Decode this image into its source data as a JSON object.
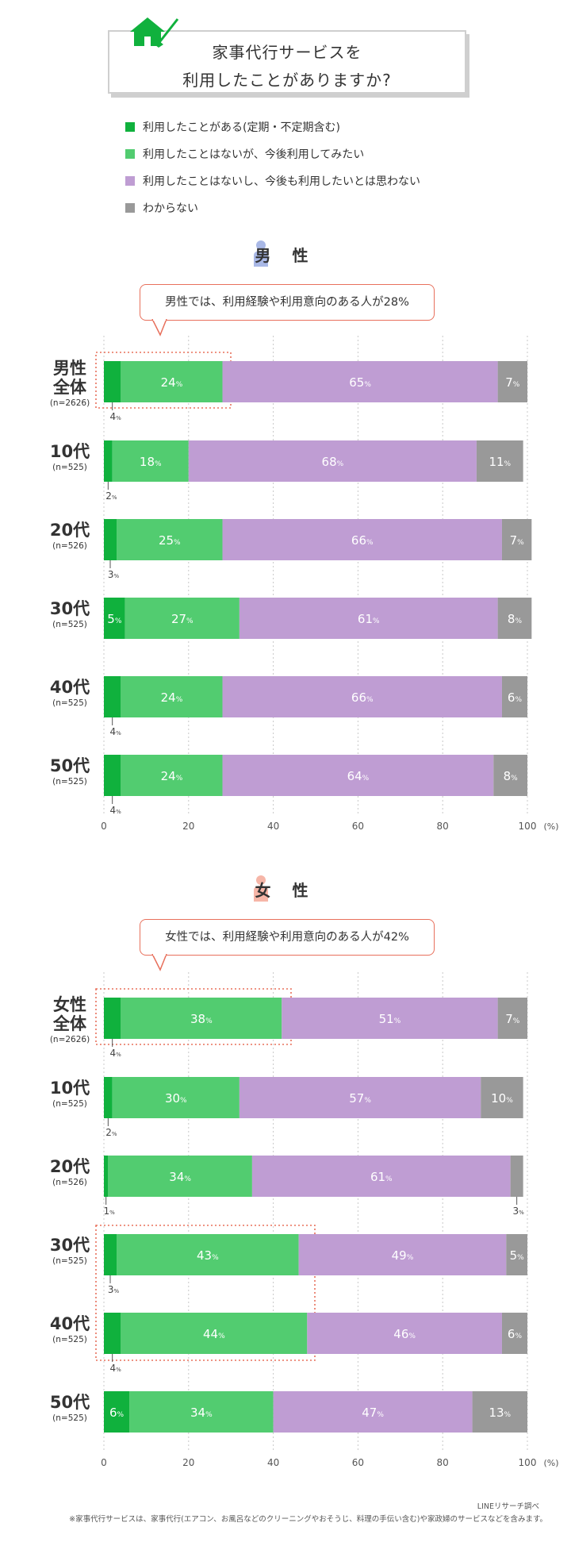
{
  "title": {
    "line1": "家事代行サービスを",
    "line2": "利用したことがありますか?"
  },
  "legend": [
    {
      "label": "利用したことがある(定期・不定期含む)",
      "color": "#10b13d"
    },
    {
      "label": "利用したことはないが、今後利用してみたい",
      "color": "#52cc70"
    },
    {
      "label": "利用したことはないし、今後も利用したいとは思わない",
      "color": "#bf9dd3"
    },
    {
      "label": "わからない",
      "color": "#999999"
    }
  ],
  "unit_suffix": "%",
  "colors": {
    "used": "#10b13d",
    "want": "#52cc70",
    "no": "#bf9dd3",
    "unknown": "#999999",
    "accent": "#e8705c",
    "male_icon": "#a9b8e6",
    "female_icon": "#f6b6a8"
  },
  "male": {
    "heading": "男 性",
    "callout": "男性では、利用経験や利用意向のある人が28%",
    "axis": {
      "ticks": [
        "0",
        "20",
        "40",
        "60",
        "80",
        "100"
      ],
      "unit": "(%)"
    },
    "rows": [
      {
        "label1": "男性",
        "label2": "全体",
        "n": "(n=2626)"
      },
      {
        "label1": "10代",
        "label2": "",
        "n": "(n=525)"
      },
      {
        "label1": "20代",
        "label2": "",
        "n": "(n=526)"
      },
      {
        "label1": "30代",
        "label2": "",
        "n": "(n=525)"
      },
      {
        "label1": "40代",
        "label2": "",
        "n": "(n=525)"
      },
      {
        "label1": "50代",
        "label2": "",
        "n": "(n=525)"
      }
    ]
  },
  "female": {
    "heading": "女 性",
    "callout": "女性では、利用経験や利用意向のある人が42%",
    "axis": {
      "ticks": [
        "0",
        "20",
        "40",
        "60",
        "80",
        "100"
      ],
      "unit": "(%)"
    },
    "rows": [
      {
        "label1": "女性",
        "label2": "全体",
        "n": "(n=2626)"
      },
      {
        "label1": "10代",
        "label2": "",
        "n": "(n=525)"
      },
      {
        "label1": "20代",
        "label2": "",
        "n": "(n=526)"
      },
      {
        "label1": "30代",
        "label2": "",
        "n": "(n=525)"
      },
      {
        "label1": "40代",
        "label2": "",
        "n": "(n=525)"
      },
      {
        "label1": "50代",
        "label2": "",
        "n": "(n=525)"
      }
    ]
  },
  "chart_data": [
    {
      "type": "bar",
      "orientation": "horizontal-stacked",
      "title": "男 性",
      "categories": [
        "男性全体",
        "10代",
        "20代",
        "30代",
        "40代",
        "50代"
      ],
      "series": [
        {
          "name": "利用したことがある(定期・不定期含む)",
          "values": [
            4,
            2,
            3,
            5,
            4,
            4
          ]
        },
        {
          "name": "利用したことはないが、今後利用してみたい",
          "values": [
            24,
            18,
            25,
            27,
            24,
            24
          ]
        },
        {
          "name": "利用したことはないし、今後も利用したいとは思わない",
          "values": [
            65,
            68,
            66,
            61,
            66,
            64
          ]
        },
        {
          "name": "わからない",
          "values": [
            7,
            11,
            7,
            8,
            6,
            8
          ]
        }
      ],
      "xlim": [
        0,
        100
      ],
      "grid": "vertical dotted",
      "highlighted_rows": [
        "男性全体"
      ]
    },
    {
      "type": "bar",
      "orientation": "horizontal-stacked",
      "title": "女 性",
      "categories": [
        "女性全体",
        "10代",
        "20代",
        "30代",
        "40代",
        "50代"
      ],
      "series": [
        {
          "name": "利用したことがある(定期・不定期含む)",
          "values": [
            4,
            2,
            1,
            3,
            4,
            6
          ]
        },
        {
          "name": "利用したことはないが、今後利用してみたい",
          "values": [
            38,
            30,
            34,
            43,
            44,
            34
          ]
        },
        {
          "name": "利用したことはないし、今後も利用したいとは思わない",
          "values": [
            51,
            57,
            61,
            49,
            46,
            47
          ]
        },
        {
          "name": "わからない",
          "values": [
            7,
            10,
            3,
            5,
            6,
            13
          ]
        }
      ],
      "xlim": [
        0,
        100
      ],
      "grid": "vertical dotted",
      "highlighted_rows": [
        "女性全体",
        "30代",
        "40代"
      ]
    }
  ],
  "footer": {
    "source": "LINEリサーチ調べ",
    "note": "※家事代行サービスは、家事代行(エアコン、お風呂などのクリーニングやおそうじ、料理の手伝い含む)や家政婦のサービスなどを含みます。"
  }
}
